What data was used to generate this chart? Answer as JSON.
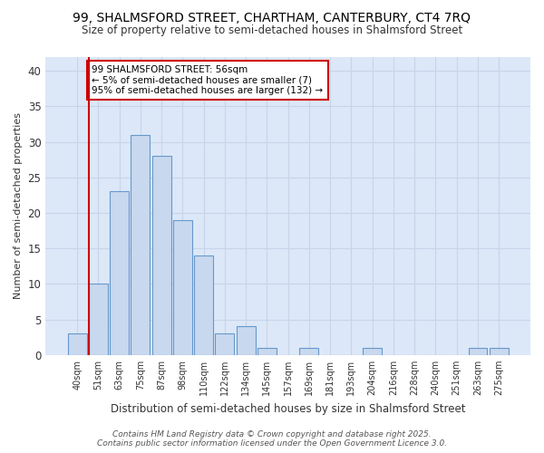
{
  "title1": "99, SHALMSFORD STREET, CHARTHAM, CANTERBURY, CT4 7RQ",
  "title2": "Size of property relative to semi-detached houses in Shalmsford Street",
  "xlabel": "Distribution of semi-detached houses by size in Shalmsford Street",
  "ylabel": "Number of semi-detached properties",
  "categories": [
    "40sqm",
    "51sqm",
    "63sqm",
    "75sqm",
    "87sqm",
    "98sqm",
    "110sqm",
    "122sqm",
    "134sqm",
    "145sqm",
    "157sqm",
    "169sqm",
    "181sqm",
    "193sqm",
    "204sqm",
    "216sqm",
    "228sqm",
    "240sqm",
    "251sqm",
    "263sqm",
    "275sqm"
  ],
  "values": [
    3,
    10,
    23,
    31,
    28,
    19,
    14,
    3,
    4,
    1,
    0,
    1,
    0,
    0,
    1,
    0,
    0,
    0,
    0,
    1,
    1
  ],
  "bar_color": "#c8d8ee",
  "bar_edge_color": "#6699cc",
  "grid_color": "#c8d4e8",
  "plot_bg_color": "#dce8f8",
  "fig_bg_color": "#ffffff",
  "red_line_color": "#cc0000",
  "annotation_text": "99 SHALMSFORD STREET: 56sqm\n← 5% of semi-detached houses are smaller (7)\n95% of semi-detached houses are larger (132) →",
  "annotation_box_facecolor": "#ffffff",
  "annotation_box_edgecolor": "#cc0000",
  "ylim": [
    0,
    42
  ],
  "yticks": [
    0,
    5,
    10,
    15,
    20,
    25,
    30,
    35,
    40
  ],
  "footer": "Contains HM Land Registry data © Crown copyright and database right 2025.\nContains public sector information licensed under the Open Government Licence 3.0."
}
